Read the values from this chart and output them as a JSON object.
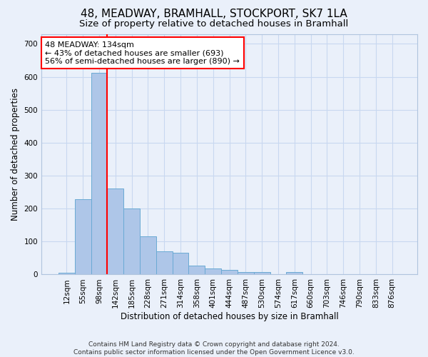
{
  "title": "48, MEADWAY, BRAMHALL, STOCKPORT, SK7 1LA",
  "subtitle": "Size of property relative to detached houses in Bramhall",
  "xlabel": "Distribution of detached houses by size in Bramhall",
  "ylabel": "Number of detached properties",
  "bin_labels": [
    "12sqm",
    "55sqm",
    "98sqm",
    "142sqm",
    "185sqm",
    "228sqm",
    "271sqm",
    "314sqm",
    "358sqm",
    "401sqm",
    "444sqm",
    "487sqm",
    "530sqm",
    "574sqm",
    "617sqm",
    "660sqm",
    "703sqm",
    "746sqm",
    "790sqm",
    "833sqm",
    "876sqm"
  ],
  "bar_values": [
    5,
    228,
    612,
    260,
    200,
    115,
    70,
    65,
    28,
    18,
    15,
    8,
    8,
    0,
    8,
    0,
    0,
    0,
    0,
    0,
    0
  ],
  "bar_color": "#aec6e8",
  "bar_edgecolor": "#6aaad4",
  "vline_x": 2.5,
  "annotation_text": "48 MEADWAY: 134sqm\n← 43% of detached houses are smaller (693)\n56% of semi-detached houses are larger (890) →",
  "annotation_box_color": "white",
  "annotation_box_edgecolor": "red",
  "vline_color": "red",
  "ylim": [
    0,
    730
  ],
  "yticks": [
    0,
    100,
    200,
    300,
    400,
    500,
    600,
    700
  ],
  "footnote": "Contains HM Land Registry data © Crown copyright and database right 2024.\nContains public sector information licensed under the Open Government Licence v3.0.",
  "background_color": "#eaf0fa",
  "plot_bg_color": "#eaf0fa",
  "grid_color": "#c8d8f0",
  "title_fontsize": 11,
  "subtitle_fontsize": 9.5,
  "label_fontsize": 8.5,
  "tick_fontsize": 7.5,
  "footnote_fontsize": 6.5
}
